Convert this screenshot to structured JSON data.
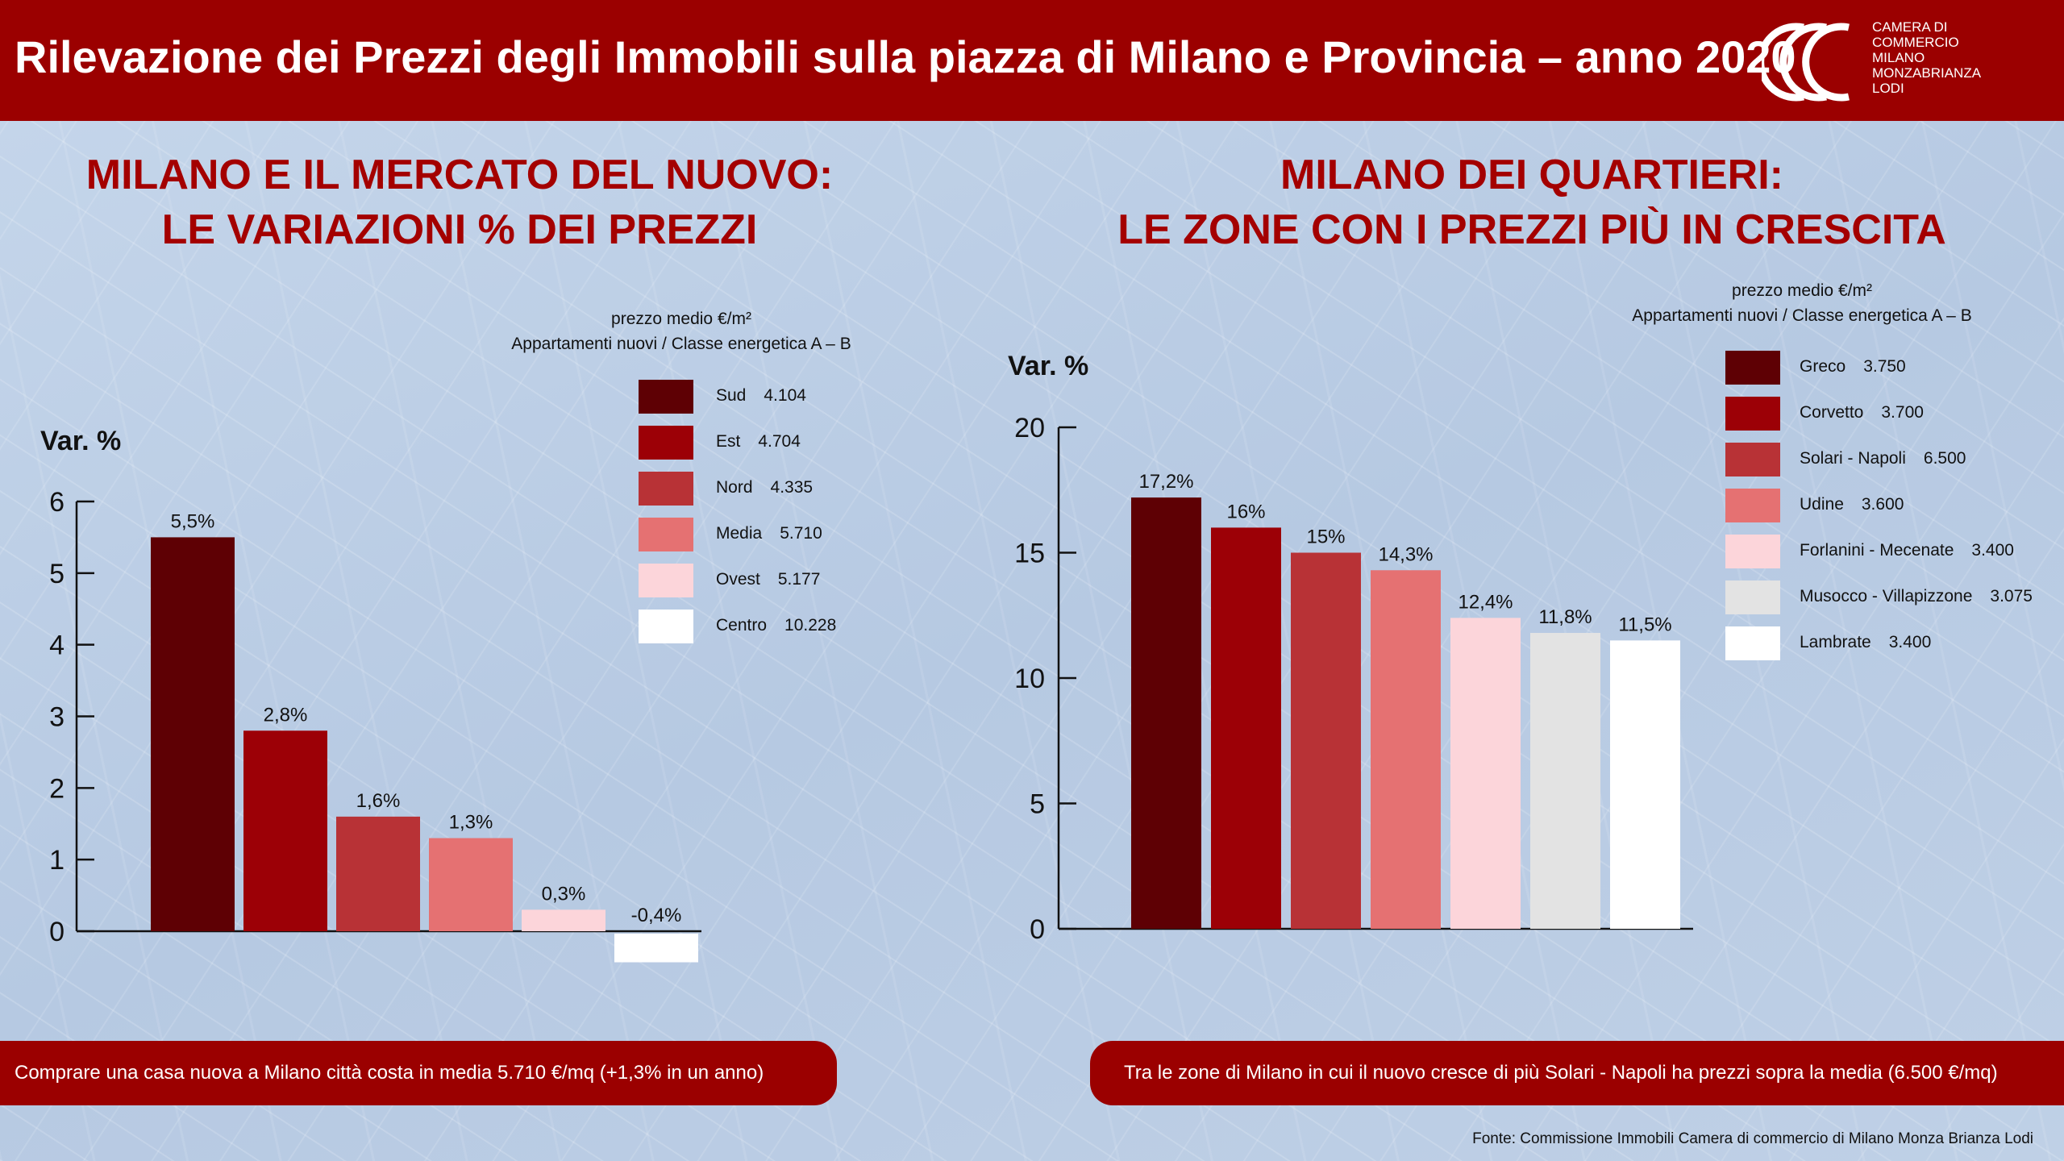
{
  "header": {
    "title": "Rilevazione dei Prezzi degli Immobili sulla piazza di Milano e Provincia – anno 2020",
    "logo_lines": [
      "CAMERA DI",
      "COMMERCIO",
      "MILANO",
      "MONZABRIANZA",
      "LODI"
    ]
  },
  "left": {
    "title_line1": "MILANO E IL MERCATO DEL NUOVO:",
    "title_line2": "LE VARIAZIONI % DEI PREZZI",
    "legend_head1": "prezzo medio €/m²",
    "legend_head2": "Appartamenti nuovi / Classe energetica A – B",
    "legend": [
      {
        "label": "Sud",
        "value": "4.104",
        "color": "#5e0004"
      },
      {
        "label": "Est",
        "value": "4.704",
        "color": "#9c0006"
      },
      {
        "label": "Nord",
        "value": "4.335",
        "color": "#b83236"
      },
      {
        "label": "Media",
        "value": "5.710",
        "color": "#e57172"
      },
      {
        "label": "Ovest",
        "value": "5.177",
        "color": "#fcd5da"
      },
      {
        "label": "Centro",
        "value": "10.228",
        "color": "#ffffff"
      }
    ],
    "banner": "Comprare una casa nuova a Milano città costa in media 5.710 €/mq (+1,3% in un anno)"
  },
  "right": {
    "title_line1": "MILANO DEI QUARTIERI:",
    "title_line2": "LE ZONE CON I PREZZI PIÙ IN CRESCITA",
    "legend_head1": "prezzo medio €/m²",
    "legend_head2": "Appartamenti nuovi / Classe energetica A – B",
    "legend": [
      {
        "label": "Greco",
        "value": "3.750",
        "color": "#5e0004"
      },
      {
        "label": "Corvetto",
        "value": "3.700",
        "color": "#9c0006"
      },
      {
        "label": "Solari - Napoli",
        "value": "6.500",
        "color": "#b83236"
      },
      {
        "label": "Udine",
        "value": "3.600",
        "color": "#e57172"
      },
      {
        "label": "Forlanini - Mecenate",
        "value": "3.400",
        "color": "#fcd5da"
      },
      {
        "label": "Musocco - Villapizzone",
        "value": "3.075",
        "color": "#e3e3e3"
      },
      {
        "label": "Lambrate",
        "value": "3.400",
        "color": "#ffffff"
      }
    ],
    "banner": "Tra le zone di Milano in cui il nuovo cresce di più Solari - Napoli ha prezzi sopra la media (6.500  €/mq)"
  },
  "source": "Fonte:  Commissione Immobili Camera di commercio di Milano Monza Brianza Lodi",
  "chart_data": [
    {
      "type": "bar",
      "ylabel": "Var. %",
      "ylim": [
        0,
        6
      ],
      "yticks": [
        0,
        1,
        2,
        3,
        4,
        5,
        6
      ],
      "categories": [
        "Sud",
        "Est",
        "Nord",
        "Media",
        "Ovest",
        "Centro"
      ],
      "values": [
        5.5,
        2.8,
        1.6,
        1.3,
        0.3,
        -0.4
      ],
      "value_labels": [
        "5,5%",
        "2,8%",
        "1,6%",
        "1,3%",
        "0,3%",
        "-0,4%"
      ],
      "colors": [
        "#5e0004",
        "#9c0006",
        "#b83236",
        "#e57172",
        "#fcd5da",
        "#ffffff"
      ]
    },
    {
      "type": "bar",
      "ylabel": "Var. %",
      "ylim": [
        0,
        20
      ],
      "yticks": [
        0,
        5,
        10,
        15,
        20
      ],
      "categories": [
        "Greco",
        "Corvetto",
        "Solari - Napoli",
        "Udine",
        "Forlanini - Mecenate",
        "Musocco - Villapizzone",
        "Lambrate"
      ],
      "values": [
        17.2,
        16,
        15,
        14.3,
        12.4,
        11.8,
        11.5
      ],
      "value_labels": [
        "17,2%",
        "16%",
        "15%",
        "14,3%",
        "12,4%",
        "11,8%",
        "11,5%"
      ],
      "colors": [
        "#5e0004",
        "#9c0006",
        "#b83236",
        "#e57172",
        "#fcd5da",
        "#e3e3e3",
        "#ffffff"
      ]
    }
  ]
}
